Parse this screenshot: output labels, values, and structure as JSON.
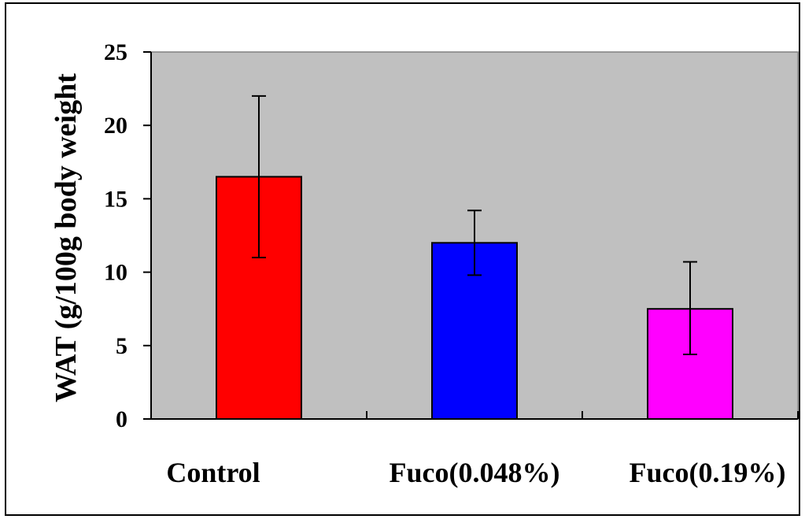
{
  "chart_data": {
    "type": "bar",
    "ylabel": "WAT (g/100g body weight",
    "xlabel": "",
    "title": "",
    "categories": [
      "Control",
      "Fuco(0.048%)",
      "Fuco(0.19%)"
    ],
    "values": [
      16.5,
      12.0,
      7.5
    ],
    "error_low": [
      11.0,
      9.8,
      4.4
    ],
    "error_high": [
      22.0,
      14.2,
      10.7
    ],
    "colors": [
      "#ff0000",
      "#0000ff",
      "#ff00ff"
    ],
    "ylim": [
      0,
      25
    ],
    "yticks": [
      "0",
      "5",
      "10",
      "15",
      "20",
      "25"
    ],
    "plot_background": "#c0c0c0",
    "grid": false,
    "legend": "none"
  }
}
